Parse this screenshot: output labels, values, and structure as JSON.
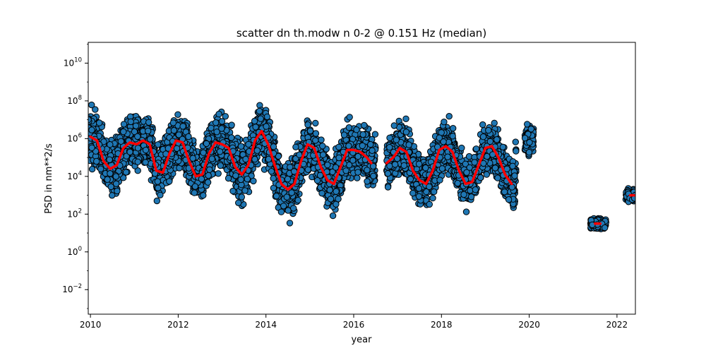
{
  "chart_data": {
    "type": "scatter",
    "title": "scatter dn th.modw n 0-2 @ 0.151 Hz (median)",
    "xlabel": "year",
    "ylabel": "PSD in nm**2/s",
    "xlim": [
      2009.95,
      2022.42
    ],
    "ylim_log10": [
      -3.3,
      11.1
    ],
    "yscale": "log",
    "grid": false,
    "legend": "none",
    "x_ticks": [
      2010,
      2012,
      2014,
      2016,
      2018,
      2020,
      2022
    ],
    "x_tick_labels": [
      "2010",
      "2012",
      "2014",
      "2016",
      "2018",
      "2020",
      "2022"
    ],
    "y_ticks_exponent": [
      -2,
      0,
      2,
      4,
      6,
      8,
      10
    ],
    "y_tick_base": "10",
    "marker_color": "#1f77b4",
    "marker_edge_color": "#000000",
    "median_color": "#ff0000",
    "scatter_segments": [
      {
        "x_start": 2009.95,
        "x_end": 2016.5,
        "log10_center": 5.0,
        "seasonal_amplitude": 1.2,
        "spread": 1.1
      },
      {
        "x_start": 2016.75,
        "x_end": 2019.7,
        "log10_center": 4.8,
        "seasonal_amplitude": 1.0,
        "spread": 1.0
      },
      {
        "x_start": 2019.9,
        "x_end": 2020.1,
        "log10_center": 5.9,
        "seasonal_amplitude": 0.0,
        "spread": 0.6
      },
      {
        "x_start": 2021.4,
        "x_end": 2021.75,
        "log10_center": 1.5,
        "seasonal_amplitude": 0.0,
        "spread": 0.2
      },
      {
        "x_start": 2022.2,
        "x_end": 2022.42,
        "log10_center": 3.0,
        "seasonal_amplitude": 0.0,
        "spread": 0.3
      }
    ],
    "median_series": [
      {
        "x": [
          2010.0,
          2010.15,
          2010.3,
          2010.45,
          2010.6,
          2010.75,
          2010.9,
          2011.05,
          2011.2,
          2011.35,
          2011.5,
          2011.65,
          2011.8,
          2011.95,
          2012.1,
          2012.25,
          2012.4,
          2012.55,
          2012.7,
          2012.85,
          2013.0,
          2013.15,
          2013.3,
          2013.45,
          2013.6,
          2013.75,
          2013.9,
          2014.05,
          2014.2,
          2014.35,
          2014.5,
          2014.65,
          2014.8,
          2014.95,
          2015.1,
          2015.25,
          2015.4,
          2015.55,
          2015.7,
          2015.85,
          2016.0,
          2016.15,
          2016.3,
          2016.4
        ],
        "log10": [
          6.1,
          5.9,
          4.8,
          4.4,
          4.6,
          5.5,
          5.8,
          5.7,
          5.9,
          5.7,
          4.3,
          4.2,
          5.2,
          5.9,
          5.8,
          4.8,
          4.0,
          4.1,
          5.2,
          5.8,
          5.7,
          5.5,
          4.5,
          4.1,
          4.6,
          5.9,
          6.4,
          5.7,
          4.6,
          3.6,
          3.3,
          3.6,
          4.8,
          5.7,
          5.5,
          4.5,
          3.8,
          3.6,
          4.5,
          5.4,
          5.4,
          5.3,
          5.0,
          4.7
        ]
      },
      {
        "x": [
          2016.75,
          2016.9,
          2017.05,
          2017.2,
          2017.35,
          2017.5,
          2017.65,
          2017.8,
          2017.95,
          2018.1,
          2018.25,
          2018.4,
          2018.55,
          2018.7,
          2018.85,
          2019.0,
          2019.15,
          2019.3,
          2019.45,
          2019.6
        ],
        "log10": [
          4.7,
          5.0,
          5.5,
          5.3,
          4.3,
          3.8,
          3.6,
          4.3,
          5.4,
          5.6,
          5.3,
          4.3,
          3.6,
          3.7,
          4.6,
          5.5,
          5.6,
          5.0,
          4.1,
          3.6
        ]
      },
      {
        "x": [
          2021.5,
          2021.62
        ],
        "log10": [
          1.5,
          1.5
        ]
      },
      {
        "x": [
          2022.3,
          2022.42
        ],
        "log10": [
          3.0,
          3.0
        ]
      }
    ]
  }
}
